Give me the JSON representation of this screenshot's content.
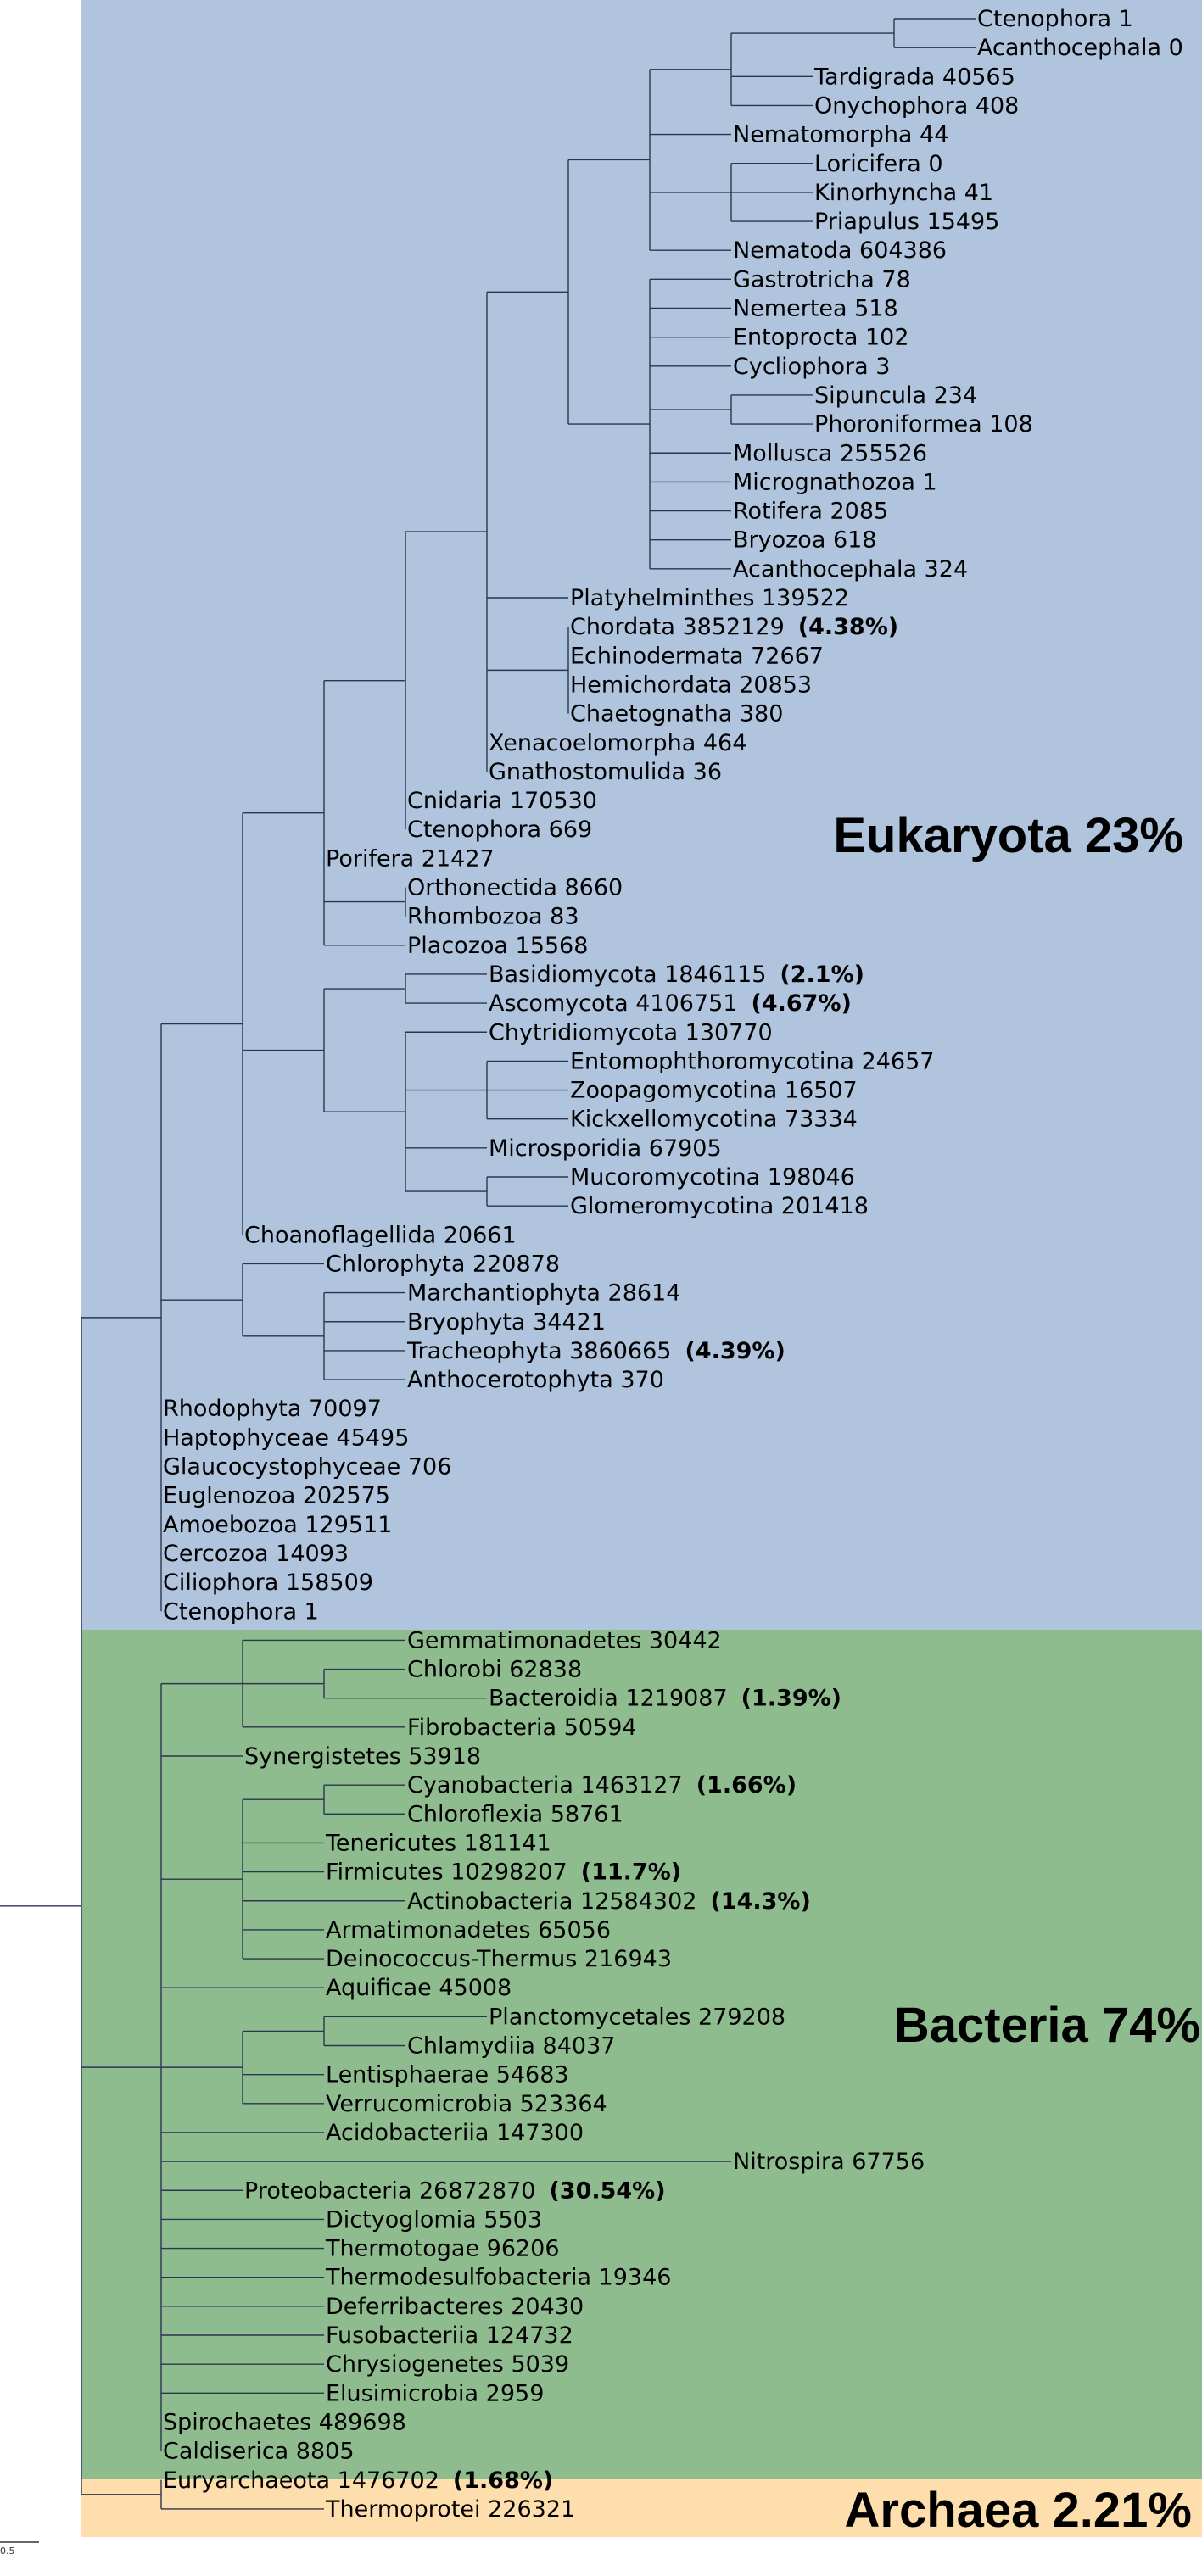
{
  "domains": [
    {
      "name": "eukaryota",
      "label": "Eukaryota 23%",
      "color": "#b0c4de"
    },
    {
      "name": "bacteria",
      "label": "Bacteria 74%",
      "color": "#8fbc8f"
    },
    {
      "name": "archaea",
      "label": "Archaea 2.21%",
      "color": "#ffdead"
    }
  ],
  "scale_label": "0.5",
  "leaves": [
    {
      "name": "Ctenophora",
      "count": "1",
      "pct": ""
    },
    {
      "name": "Acanthocephala",
      "count": "0",
      "pct": ""
    },
    {
      "name": "Tardigrada",
      "count": "40565",
      "pct": ""
    },
    {
      "name": "Onychophora",
      "count": "408",
      "pct": ""
    },
    {
      "name": "Nematomorpha",
      "count": "44",
      "pct": ""
    },
    {
      "name": "Loricifera",
      "count": "0",
      "pct": ""
    },
    {
      "name": "Kinorhyncha",
      "count": "41",
      "pct": ""
    },
    {
      "name": "Priapulus",
      "count": "15495",
      "pct": ""
    },
    {
      "name": "Nematoda",
      "count": "604386",
      "pct": ""
    },
    {
      "name": "Gastrotricha",
      "count": "78",
      "pct": ""
    },
    {
      "name": "Nemertea",
      "count": "518",
      "pct": ""
    },
    {
      "name": "Entoprocta",
      "count": "102",
      "pct": ""
    },
    {
      "name": "Cycliophora",
      "count": "3",
      "pct": ""
    },
    {
      "name": "Sipuncula",
      "count": "234",
      "pct": ""
    },
    {
      "name": "Phoroniformea",
      "count": "108",
      "pct": ""
    },
    {
      "name": "Mollusca",
      "count": "255526",
      "pct": ""
    },
    {
      "name": "Micrognathozoa",
      "count": "1",
      "pct": ""
    },
    {
      "name": "Rotifera",
      "count": "2085",
      "pct": ""
    },
    {
      "name": "Bryozoa",
      "count": "618",
      "pct": ""
    },
    {
      "name": "Acanthocephala",
      "count": "324",
      "pct": ""
    },
    {
      "name": "Platyhelminthes",
      "count": "139522",
      "pct": ""
    },
    {
      "name": "Chordata",
      "count": "3852129",
      "pct": "(4.38%)"
    },
    {
      "name": "Echinodermata",
      "count": "72667",
      "pct": ""
    },
    {
      "name": "Hemichordata",
      "count": "20853",
      "pct": ""
    },
    {
      "name": "Chaetognatha",
      "count": "380",
      "pct": ""
    },
    {
      "name": "Xenacoelomorpha",
      "count": "464",
      "pct": ""
    },
    {
      "name": "Gnathostomulida",
      "count": "36",
      "pct": ""
    },
    {
      "name": "Cnidaria",
      "count": "170530",
      "pct": ""
    },
    {
      "name": "Ctenophora",
      "count": "669",
      "pct": ""
    },
    {
      "name": "Porifera",
      "count": "21427",
      "pct": ""
    },
    {
      "name": "Orthonectida",
      "count": "8660",
      "pct": ""
    },
    {
      "name": "Rhombozoa",
      "count": "83",
      "pct": ""
    },
    {
      "name": "Placozoa",
      "count": "15568",
      "pct": ""
    },
    {
      "name": "Basidiomycota",
      "count": "1846115",
      "pct": "(2.1%)"
    },
    {
      "name": "Ascomycota",
      "count": "4106751",
      "pct": "(4.67%)"
    },
    {
      "name": "Chytridiomycota",
      "count": "130770",
      "pct": ""
    },
    {
      "name": "Entomophthoromycotina",
      "count": "24657",
      "pct": ""
    },
    {
      "name": "Zoopagomycotina",
      "count": "16507",
      "pct": ""
    },
    {
      "name": "Kickxellomycotina",
      "count": "73334",
      "pct": ""
    },
    {
      "name": "Microsporidia",
      "count": "67905",
      "pct": ""
    },
    {
      "name": "Mucoromycotina",
      "count": "198046",
      "pct": ""
    },
    {
      "name": "Glomeromycotina",
      "count": "201418",
      "pct": ""
    },
    {
      "name": "Choanoflagellida",
      "count": "20661",
      "pct": ""
    },
    {
      "name": "Chlorophyta",
      "count": "220878",
      "pct": ""
    },
    {
      "name": "Marchantiophyta",
      "count": "28614",
      "pct": ""
    },
    {
      "name": "Bryophyta",
      "count": "34421",
      "pct": ""
    },
    {
      "name": "Tracheophyta",
      "count": "3860665",
      "pct": "(4.39%)"
    },
    {
      "name": "Anthocerotophyta",
      "count": "370",
      "pct": ""
    },
    {
      "name": "Rhodophyta",
      "count": "70097",
      "pct": ""
    },
    {
      "name": "Haptophyceae",
      "count": "45495",
      "pct": ""
    },
    {
      "name": "Glaucocystophyceae",
      "count": "706",
      "pct": ""
    },
    {
      "name": "Euglenozoa",
      "count": "202575",
      "pct": ""
    },
    {
      "name": "Amoebozoa",
      "count": "129511",
      "pct": ""
    },
    {
      "name": "Cercozoa",
      "count": "14093",
      "pct": ""
    },
    {
      "name": "Ciliophora",
      "count": "158509",
      "pct": ""
    },
    {
      "name": "Ctenophora",
      "count": "1",
      "pct": ""
    },
    {
      "name": "Gemmatimonadetes",
      "count": "30442",
      "pct": ""
    },
    {
      "name": "Chlorobi",
      "count": "62838",
      "pct": ""
    },
    {
      "name": "Bacteroidia",
      "count": "1219087",
      "pct": "(1.39%)"
    },
    {
      "name": "Fibrobacteria",
      "count": "50594",
      "pct": ""
    },
    {
      "name": "Synergistetes",
      "count": "53918",
      "pct": ""
    },
    {
      "name": "Cyanobacteria",
      "count": "1463127",
      "pct": "(1.66%)"
    },
    {
      "name": "Chloroflexia",
      "count": "58761",
      "pct": ""
    },
    {
      "name": "Tenericutes",
      "count": "181141",
      "pct": ""
    },
    {
      "name": "Firmicutes",
      "count": "10298207",
      "pct": "(11.7%)"
    },
    {
      "name": "Actinobacteria",
      "count": "12584302",
      "pct": "(14.3%)"
    },
    {
      "name": "Armatimonadetes",
      "count": "65056",
      "pct": ""
    },
    {
      "name": "Deinococcus-Thermus",
      "count": "216943",
      "pct": ""
    },
    {
      "name": "Aquificae",
      "count": "45008",
      "pct": ""
    },
    {
      "name": "Planctomycetales",
      "count": "279208",
      "pct": ""
    },
    {
      "name": "Chlamydiia",
      "count": "84037",
      "pct": ""
    },
    {
      "name": "Lentisphaerae",
      "count": "54683",
      "pct": ""
    },
    {
      "name": "Verrucomicrobia",
      "count": "523364",
      "pct": ""
    },
    {
      "name": "Acidobacteriia",
      "count": "147300",
      "pct": ""
    },
    {
      "name": "Nitrospira",
      "count": "67756",
      "pct": ""
    },
    {
      "name": "Proteobacteria",
      "count": "26872870",
      "pct": "(30.54%)"
    },
    {
      "name": "Dictyoglomia",
      "count": "5503",
      "pct": ""
    },
    {
      "name": "Thermotogae",
      "count": "96206",
      "pct": ""
    },
    {
      "name": "Thermodesulfobacteria",
      "count": "19346",
      "pct": ""
    },
    {
      "name": "Deferribacteres",
      "count": "20430",
      "pct": ""
    },
    {
      "name": "Fusobacteriia",
      "count": "124732",
      "pct": ""
    },
    {
      "name": "Chrysiogenetes",
      "count": "5039",
      "pct": ""
    },
    {
      "name": "Elusimicrobia",
      "count": "2959",
      "pct": ""
    },
    {
      "name": "Spirochaetes",
      "count": "489698",
      "pct": ""
    },
    {
      "name": "Caldiserica",
      "count": "8805",
      "pct": ""
    },
    {
      "name": "Euryarchaeota",
      "count": "1476702",
      "pct": "(1.68%)"
    },
    {
      "name": "Thermoprotei",
      "count": "226321",
      "pct": ""
    }
  ]
}
